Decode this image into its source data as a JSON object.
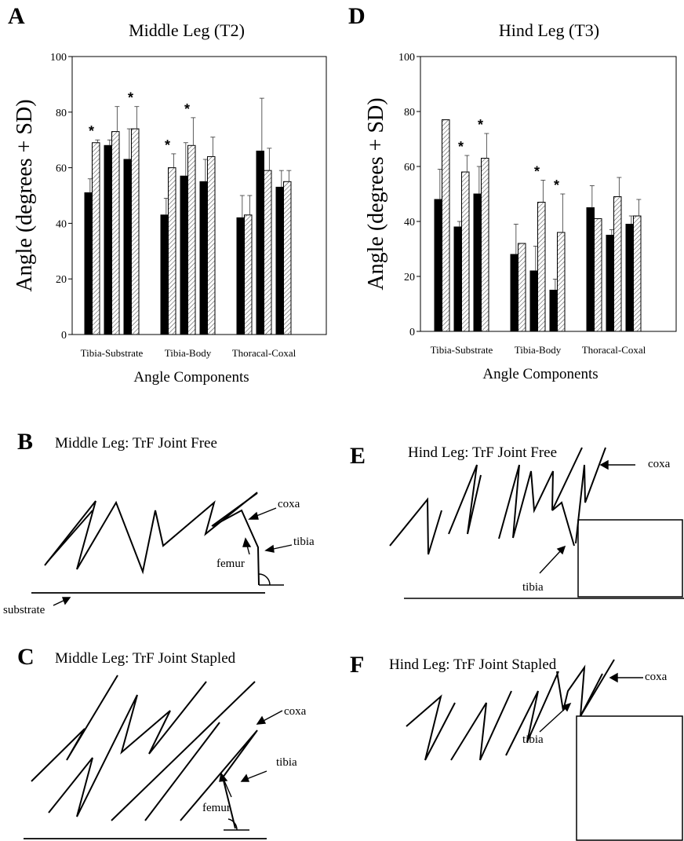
{
  "panels": {
    "A": {
      "letter": "A",
      "title": "Middle Leg (T2)"
    },
    "D": {
      "letter": "D",
      "title": "Hind Leg (T3)"
    },
    "B": {
      "letter": "B",
      "title": "Middle Leg: TrF Joint Free",
      "labels": {
        "coxa": "coxa",
        "tibia": "tibia",
        "femur": "femur",
        "substrate": "substrate"
      }
    },
    "C": {
      "letter": "C",
      "title": "Middle Leg: TrF Joint Stapled",
      "labels": {
        "coxa": "coxa",
        "tibia": "tibia",
        "femur": "femur"
      }
    },
    "E": {
      "letter": "E",
      "title": "Hind Leg: TrF Joint Free",
      "labels": {
        "coxa": "coxa",
        "tibia": "tibia"
      }
    },
    "F": {
      "letter": "F",
      "title": "Hind Leg: TrF Joint Stapled",
      "labels": {
        "coxa": "coxa",
        "tibia": "tibia"
      }
    }
  },
  "chart_data": [
    {
      "type": "bar",
      "title": "Middle Leg (T2)",
      "ylabel": "Angle (degrees + SD)",
      "xlabel": "Angle Components",
      "ylim": [
        0,
        100
      ],
      "yticks": [
        0,
        20,
        40,
        60,
        80,
        100
      ],
      "categories": [
        "Tibia-Substrate",
        "Tibia-Body",
        "Thoracal-Coxal"
      ],
      "groups": [
        {
          "category": "Tibia-Substrate",
          "pairs": [
            {
              "values": [
                51,
                69
              ],
              "sd": [
                5,
                1
              ],
              "significant": true
            },
            {
              "values": [
                68,
                73
              ],
              "sd": [
                2,
                9
              ],
              "significant": false
            },
            {
              "values": [
                63,
                74
              ],
              "sd": [
                11,
                8
              ],
              "significant": true
            }
          ]
        },
        {
          "category": "Tibia-Body",
          "pairs": [
            {
              "values": [
                43,
                60
              ],
              "sd": [
                6,
                5
              ],
              "significant": true
            },
            {
              "values": [
                57,
                68
              ],
              "sd": [
                12,
                10
              ],
              "significant": true
            },
            {
              "values": [
                55,
                64
              ],
              "sd": [
                8,
                7
              ],
              "significant": false
            }
          ]
        },
        {
          "category": "Thoracal-Coxal",
          "pairs": [
            {
              "values": [
                42,
                43
              ],
              "sd": [
                8,
                7
              ],
              "significant": false
            },
            {
              "values": [
                66,
                59
              ],
              "sd": [
                19,
                8
              ],
              "significant": false
            },
            {
              "values": [
                53,
                55
              ],
              "sd": [
                6,
                4
              ],
              "significant": false
            }
          ]
        }
      ]
    },
    {
      "type": "bar",
      "title": "Hind Leg (T3)",
      "ylabel": "Angle (degrees + SD)",
      "xlabel": "Angle Components",
      "ylim": [
        0,
        100
      ],
      "yticks": [
        0,
        20,
        40,
        60,
        80,
        100
      ],
      "categories": [
        "Tibia-Substrate",
        "Tibia-Body",
        "Thoracal-Coxal"
      ],
      "groups": [
        {
          "category": "Tibia-Substrate",
          "pairs": [
            {
              "values": [
                48,
                77
              ],
              "sd": [
                11,
                0
              ],
              "significant": false
            },
            {
              "values": [
                38,
                58
              ],
              "sd": [
                2,
                6
              ],
              "significant": true
            },
            {
              "values": [
                50,
                63
              ],
              "sd": [
                10,
                9
              ],
              "significant": true
            }
          ]
        },
        {
          "category": "Tibia-Body",
          "pairs": [
            {
              "values": [
                28,
                32
              ],
              "sd": [
                11,
                0
              ],
              "significant": false
            },
            {
              "values": [
                22,
                47
              ],
              "sd": [
                9,
                8
              ],
              "significant": true
            },
            {
              "values": [
                15,
                36
              ],
              "sd": [
                4,
                14
              ],
              "significant": true
            }
          ]
        },
        {
          "category": "Thoracal-Coxal",
          "pairs": [
            {
              "values": [
                45,
                41
              ],
              "sd": [
                8,
                0
              ],
              "significant": false
            },
            {
              "values": [
                35,
                49
              ],
              "sd": [
                2,
                7
              ],
              "significant": false
            },
            {
              "values": [
                39,
                42
              ],
              "sd": [
                3,
                6
              ],
              "significant": false
            }
          ]
        }
      ]
    }
  ]
}
